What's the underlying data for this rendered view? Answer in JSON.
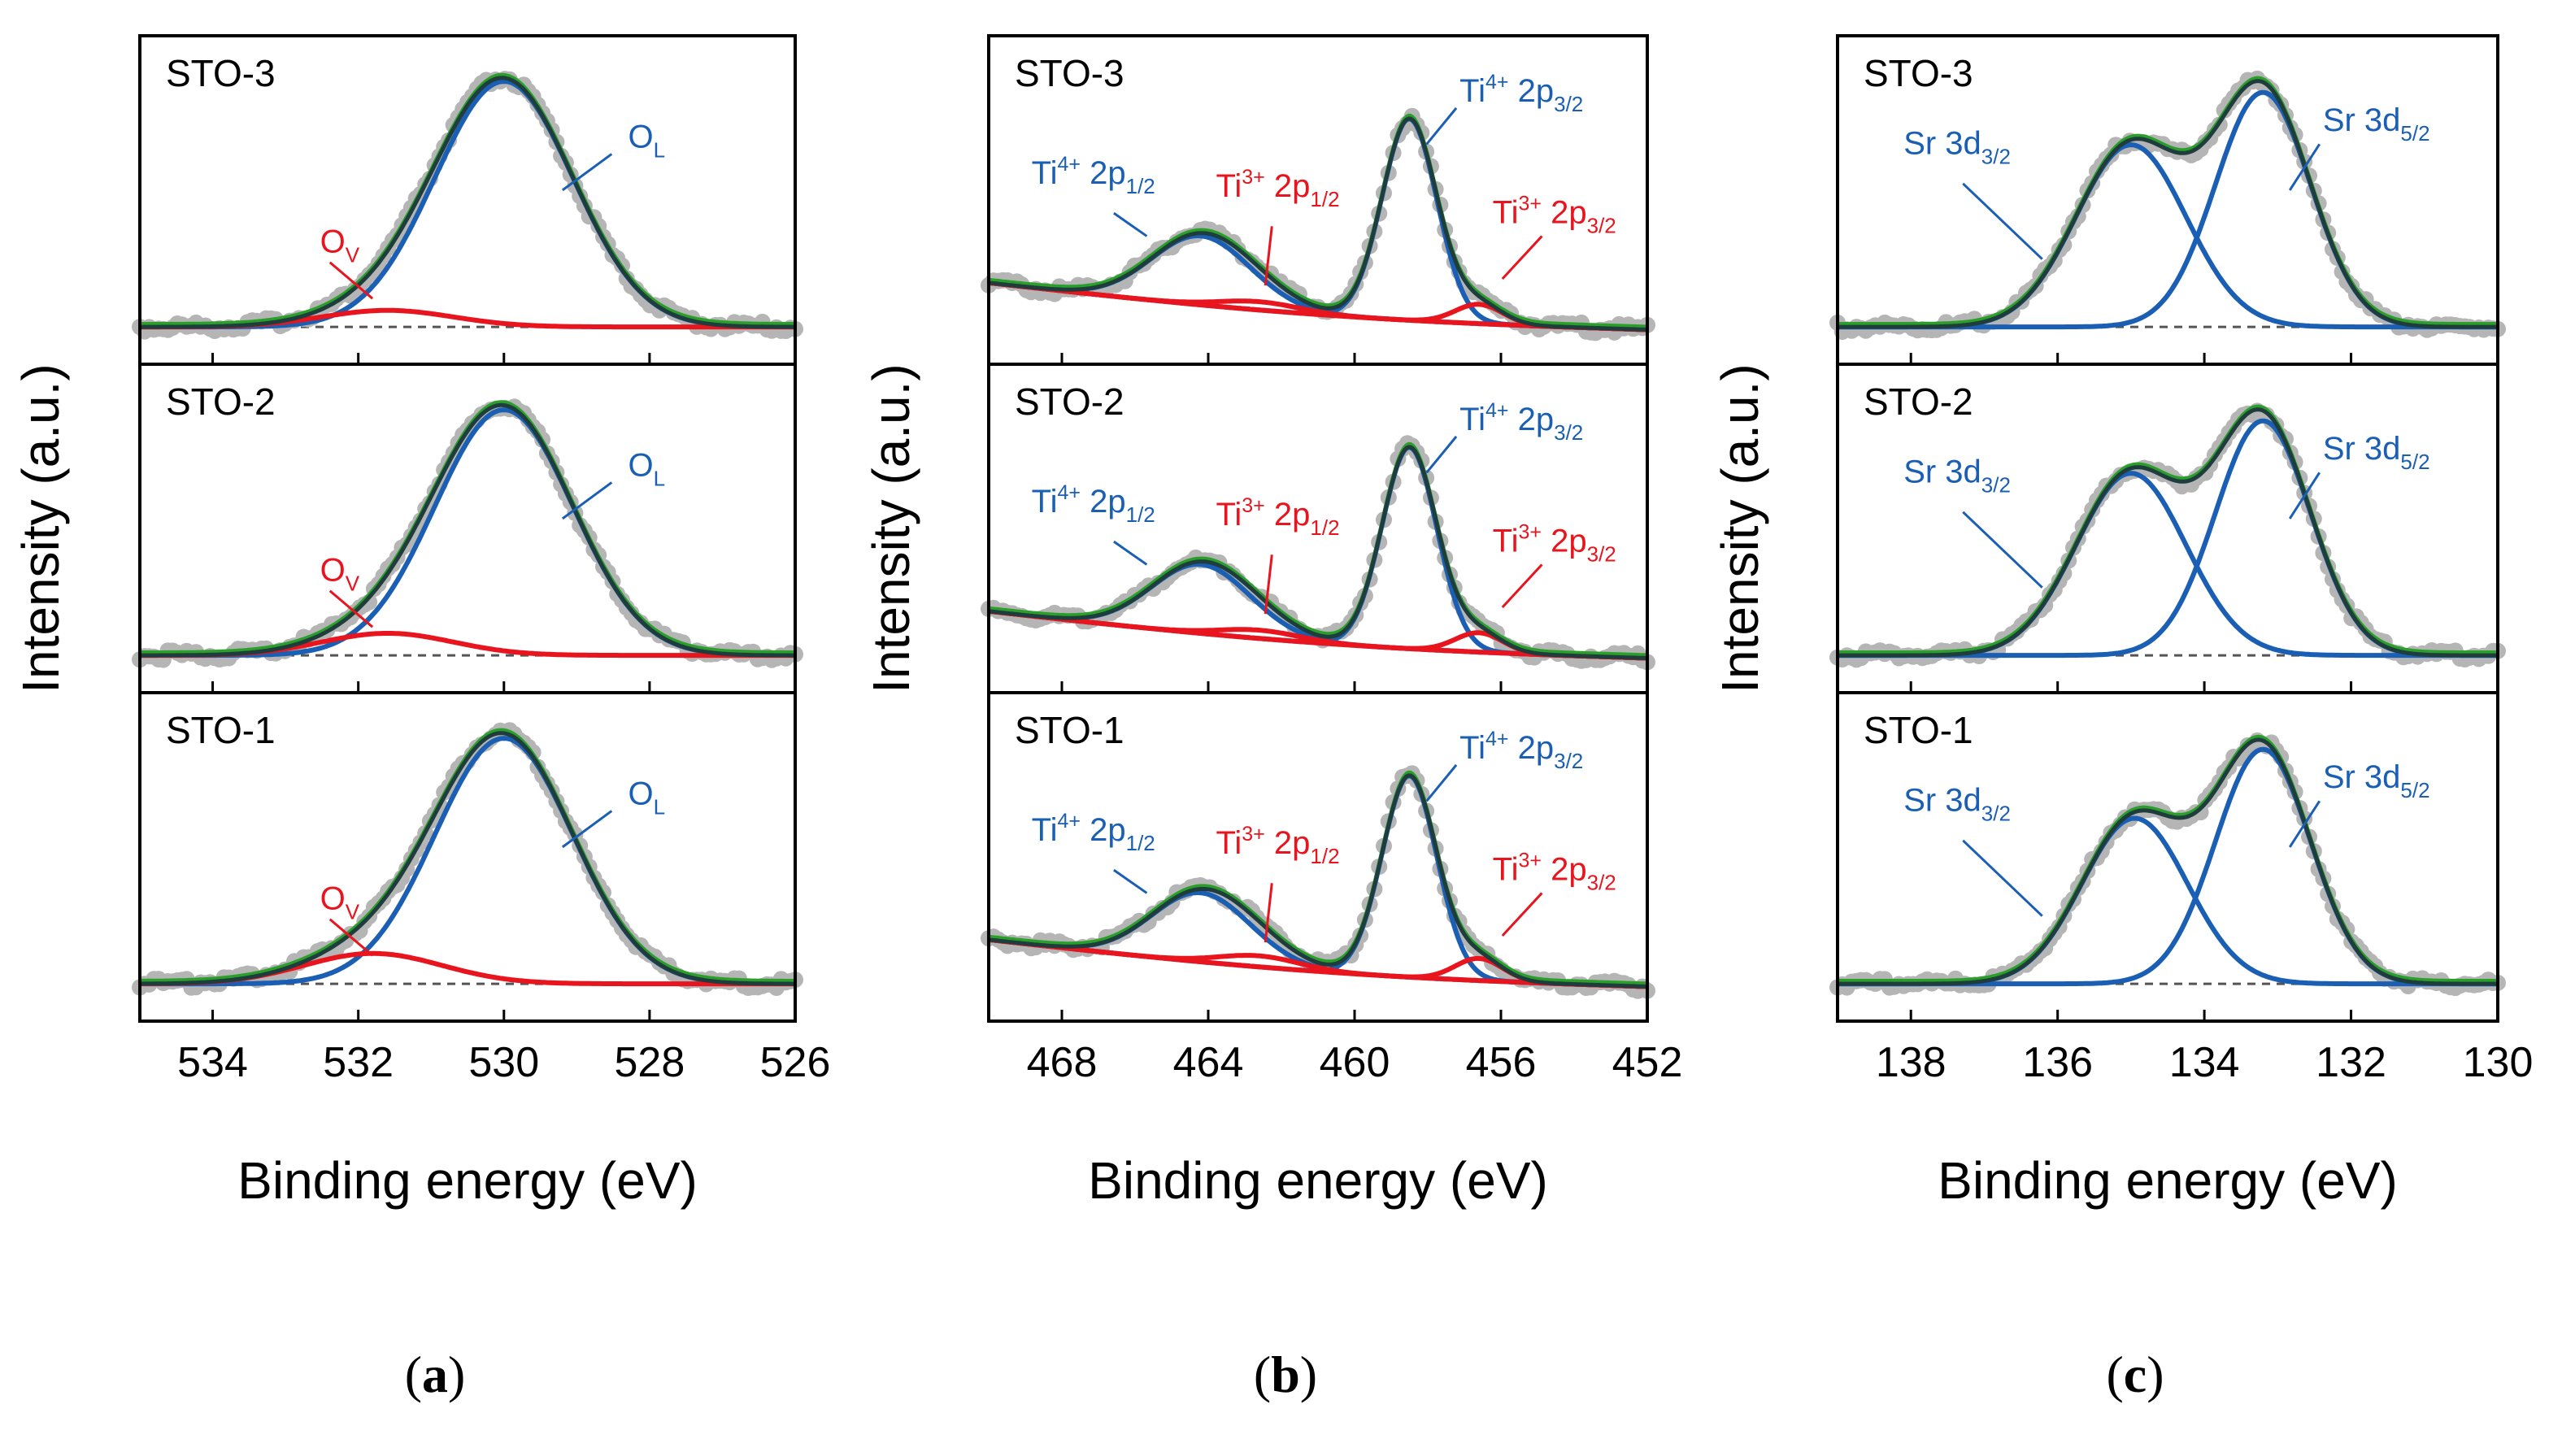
{
  "colors": {
    "raw": "#b5b5b5",
    "envelope": "#2aa02a",
    "fit": "#1f3d3d",
    "main_component": "#1a5fb4",
    "defect_component": "#e8141e",
    "background": "#555555"
  },
  "chart_data": [
    {
      "type": "line",
      "panel_label": "a",
      "xlabel": "Binding energy (eV)",
      "ylabel": "Intensity (a.u.)",
      "xlim": [
        535,
        526
      ],
      "xticks": [
        534,
        532,
        530,
        528,
        526
      ],
      "stack": [
        {
          "sample": "STO-3",
          "envelope_amplitude": 0.93,
          "background": 0.04,
          "components": [
            {
              "name": "O_L",
              "label": "O",
              "label_sub": "L",
              "color_key": "main_component",
              "center": 530.0,
              "width": 0.95,
              "amplitude": 0.89
            },
            {
              "name": "O_V",
              "label": "O",
              "label_sub": "V",
              "color_key": "defect_component",
              "center": 531.6,
              "width": 0.9,
              "amplitude": 0.06
            }
          ]
        },
        {
          "sample": "STO-2",
          "envelope_amplitude": 0.93,
          "background": 0.04,
          "components": [
            {
              "name": "O_L",
              "label": "O",
              "label_sub": "L",
              "color_key": "main_component",
              "center": 530.0,
              "width": 0.95,
              "amplitude": 0.89
            },
            {
              "name": "O_V",
              "label": "O",
              "label_sub": "V",
              "color_key": "defect_component",
              "center": 531.6,
              "width": 0.9,
              "amplitude": 0.08
            }
          ]
        },
        {
          "sample": "STO-1",
          "envelope_amplitude": 0.93,
          "background": 0.04,
          "components": [
            {
              "name": "O_L",
              "label": "O",
              "label_sub": "L",
              "color_key": "main_component",
              "center": 530.0,
              "width": 0.95,
              "amplitude": 0.89
            },
            {
              "name": "O_V",
              "label": "O",
              "label_sub": "V",
              "color_key": "defect_component",
              "center": 531.8,
              "width": 0.95,
              "amplitude": 0.11
            }
          ]
        }
      ]
    },
    {
      "type": "line",
      "panel_label": "b",
      "xlabel": "Binding energy (eV)",
      "ylabel": "Intensity (a.u.)",
      "xlim": [
        470,
        452
      ],
      "xticks": [
        468,
        464,
        460,
        456,
        452
      ],
      "stack": [
        {
          "sample": "STO-3",
          "envelope_amplitude": 0.93,
          "background": [
            0.2,
            0.03
          ],
          "components": [
            {
              "name": "Ti4+ 2p3/2",
              "label": "Ti",
              "label_sup": "4+",
              "label_mid": " 2p",
              "label_sub": "3/2",
              "color_key": "main_component",
              "center": 458.5,
              "width": 0.75,
              "amplitude": 0.73
            },
            {
              "name": "Ti4+ 2p1/2",
              "label": "Ti",
              "label_sup": "4+",
              "label_mid": " 2p",
              "label_sub": "1/2",
              "color_key": "main_component",
              "center": 464.2,
              "width": 1.35,
              "amplitude": 0.25
            },
            {
              "name": "Ti3+ 2p1/2",
              "label": "Ti",
              "label_sup": "3+",
              "label_mid": " 2p",
              "label_sub": "1/2",
              "color_key": "defect_component",
              "center": 462.6,
              "width": 1.1,
              "amplitude": 0.03
            },
            {
              "name": "Ti3+ 2p3/2",
              "label": "Ti",
              "label_sup": "3+",
              "label_mid": " 2p",
              "label_sub": "3/2",
              "color_key": "defect_component",
              "center": 456.6,
              "width": 0.65,
              "amplitude": 0.07
            }
          ]
        },
        {
          "sample": "STO-2",
          "envelope_amplitude": 0.93,
          "background": [
            0.2,
            0.03
          ],
          "components": [
            {
              "name": "Ti4+ 2p3/2",
              "label": "Ti",
              "label_sup": "4+",
              "label_mid": " 2p",
              "label_sub": "3/2",
              "color_key": "main_component",
              "center": 458.5,
              "width": 0.75,
              "amplitude": 0.73
            },
            {
              "name": "Ti4+ 2p1/2",
              "label": "Ti",
              "label_sup": "4+",
              "label_mid": " 2p",
              "label_sub": "1/2",
              "color_key": "main_component",
              "center": 464.2,
              "width": 1.35,
              "amplitude": 0.25
            },
            {
              "name": "Ti3+ 2p1/2",
              "label": "Ti",
              "label_sup": "3+",
              "label_mid": " 2p",
              "label_sub": "1/2",
              "color_key": "defect_component",
              "center": 462.6,
              "width": 1.1,
              "amplitude": 0.03
            },
            {
              "name": "Ti3+ 2p3/2",
              "label": "Ti",
              "label_sup": "3+",
              "label_mid": " 2p",
              "label_sub": "3/2",
              "color_key": "defect_component",
              "center": 456.6,
              "width": 0.65,
              "amplitude": 0.07
            }
          ]
        },
        {
          "sample": "STO-1",
          "envelope_amplitude": 0.93,
          "background": [
            0.2,
            0.03
          ],
          "components": [
            {
              "name": "Ti4+ 2p3/2",
              "label": "Ti",
              "label_sup": "4+",
              "label_mid": " 2p",
              "label_sub": "3/2",
              "color_key": "main_component",
              "center": 458.5,
              "width": 0.75,
              "amplitude": 0.73
            },
            {
              "name": "Ti4+ 2p1/2",
              "label": "Ti",
              "label_sup": "4+",
              "label_mid": " 2p",
              "label_sub": "1/2",
              "color_key": "main_component",
              "center": 464.2,
              "width": 1.35,
              "amplitude": 0.25
            },
            {
              "name": "Ti3+ 2p1/2",
              "label": "Ti",
              "label_sup": "3+",
              "label_mid": " 2p",
              "label_sub": "1/2",
              "color_key": "defect_component",
              "center": 462.6,
              "width": 1.1,
              "amplitude": 0.04
            },
            {
              "name": "Ti3+ 2p3/2",
              "label": "Ti",
              "label_sup": "3+",
              "label_mid": " 2p",
              "label_sub": "3/2",
              "color_key": "defect_component",
              "center": 456.6,
              "width": 0.65,
              "amplitude": 0.08
            }
          ]
        }
      ]
    },
    {
      "type": "line",
      "panel_label": "c",
      "xlabel": "Binding energy (eV)",
      "ylabel": "Intensity (a.u.)",
      "xlim": [
        139,
        130
      ],
      "xticks": [
        138,
        136,
        134,
        132,
        130
      ],
      "stack": [
        {
          "sample": "STO-3",
          "envelope_amplitude": 0.93,
          "background": 0.04,
          "components": [
            {
              "name": "Sr 3d5/2",
              "label": "Sr 3d",
              "label_sub": "5/2",
              "color_key": "main_component",
              "center": 133.2,
              "width": 0.65,
              "amplitude": 0.85
            },
            {
              "name": "Sr 3d3/2",
              "label": "Sr 3d",
              "label_sub": "3/2",
              "color_key": "main_component",
              "center": 135.0,
              "width": 0.75,
              "amplitude": 0.66
            }
          ]
        },
        {
          "sample": "STO-2",
          "envelope_amplitude": 0.93,
          "background": 0.04,
          "components": [
            {
              "name": "Sr 3d5/2",
              "label": "Sr 3d",
              "label_sub": "5/2",
              "color_key": "main_component",
              "center": 133.2,
              "width": 0.65,
              "amplitude": 0.85
            },
            {
              "name": "Sr 3d3/2",
              "label": "Sr 3d",
              "label_sub": "3/2",
              "color_key": "main_component",
              "center": 135.0,
              "width": 0.75,
              "amplitude": 0.66
            }
          ]
        },
        {
          "sample": "STO-1",
          "envelope_amplitude": 0.93,
          "background": 0.04,
          "components": [
            {
              "name": "Sr 3d5/2",
              "label": "Sr 3d",
              "label_sub": "5/2",
              "color_key": "main_component",
              "center": 133.2,
              "width": 0.65,
              "amplitude": 0.85
            },
            {
              "name": "Sr 3d3/2",
              "label": "Sr 3d",
              "label_sub": "3/2",
              "color_key": "main_component",
              "center": 134.95,
              "width": 0.72,
              "amplitude": 0.6
            }
          ]
        }
      ]
    }
  ]
}
